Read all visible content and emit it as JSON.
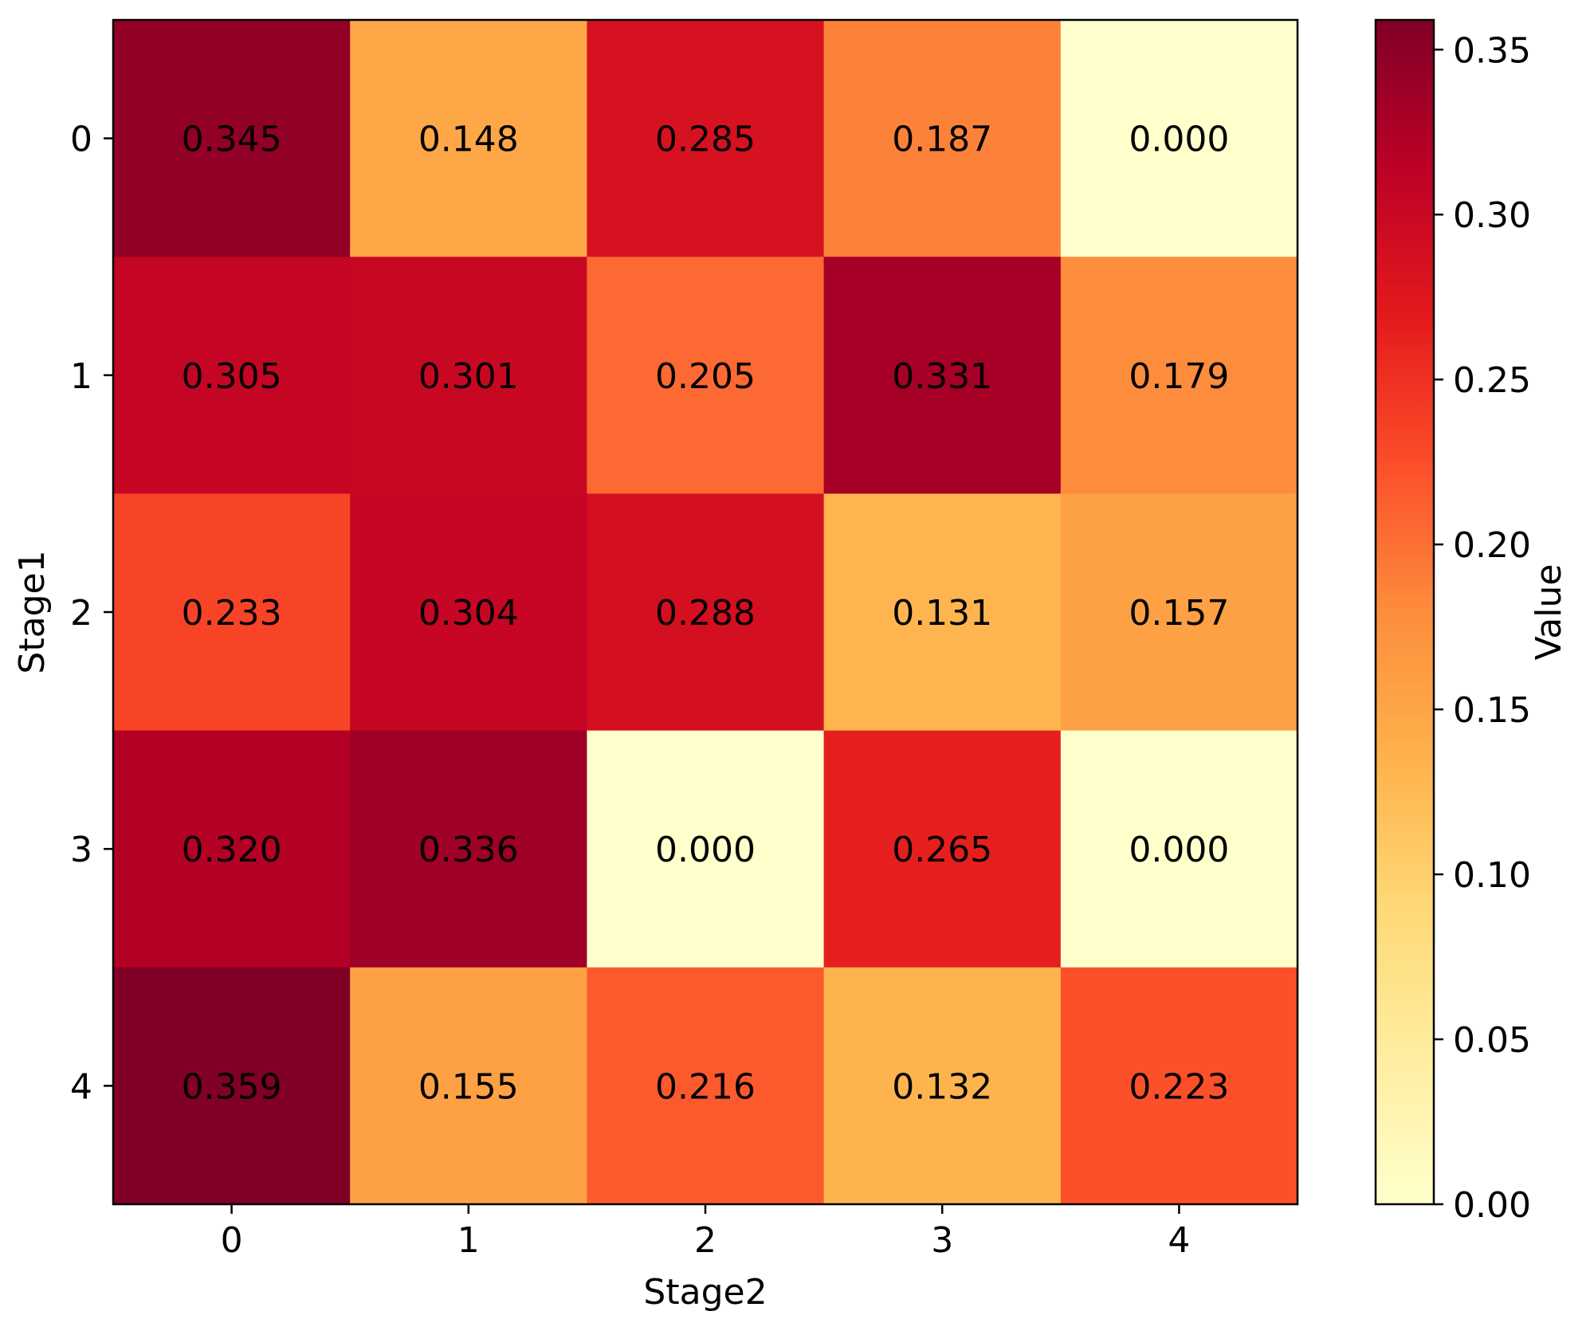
{
  "chart_data": {
    "type": "heatmap",
    "x_categories": [
      "0",
      "1",
      "2",
      "3",
      "4"
    ],
    "y_categories": [
      "0",
      "1",
      "2",
      "3",
      "4"
    ],
    "xlabel": "Stage2",
    "ylabel": "Stage1",
    "values": [
      [
        0.345,
        0.148,
        0.285,
        0.187,
        0.0
      ],
      [
        0.305,
        0.301,
        0.205,
        0.331,
        0.179
      ],
      [
        0.233,
        0.304,
        0.288,
        0.131,
        0.157
      ],
      [
        0.32,
        0.336,
        0.0,
        0.265,
        0.0
      ],
      [
        0.359,
        0.155,
        0.216,
        0.132,
        0.223
      ]
    ],
    "value_labels": [
      [
        "0.345",
        "0.148",
        "0.285",
        "0.187",
        "0.000"
      ],
      [
        "0.305",
        "0.301",
        "0.205",
        "0.331",
        "0.179"
      ],
      [
        "0.233",
        "0.304",
        "0.288",
        "0.131",
        "0.157"
      ],
      [
        "0.320",
        "0.336",
        "0.000",
        "0.265",
        "0.000"
      ],
      [
        "0.359",
        "0.155",
        "0.216",
        "0.132",
        "0.223"
      ]
    ],
    "colorscale": "YlOrRd",
    "color_range": [
      0.0,
      0.359
    ],
    "colorbar": {
      "label": "Value",
      "ticks": [
        0.0,
        0.05,
        0.1,
        0.15,
        0.2,
        0.25,
        0.3,
        0.35
      ],
      "tick_labels": [
        "0.00",
        "0.05",
        "0.10",
        "0.15",
        "0.20",
        "0.25",
        "0.30",
        "0.35"
      ]
    },
    "grid": false
  }
}
